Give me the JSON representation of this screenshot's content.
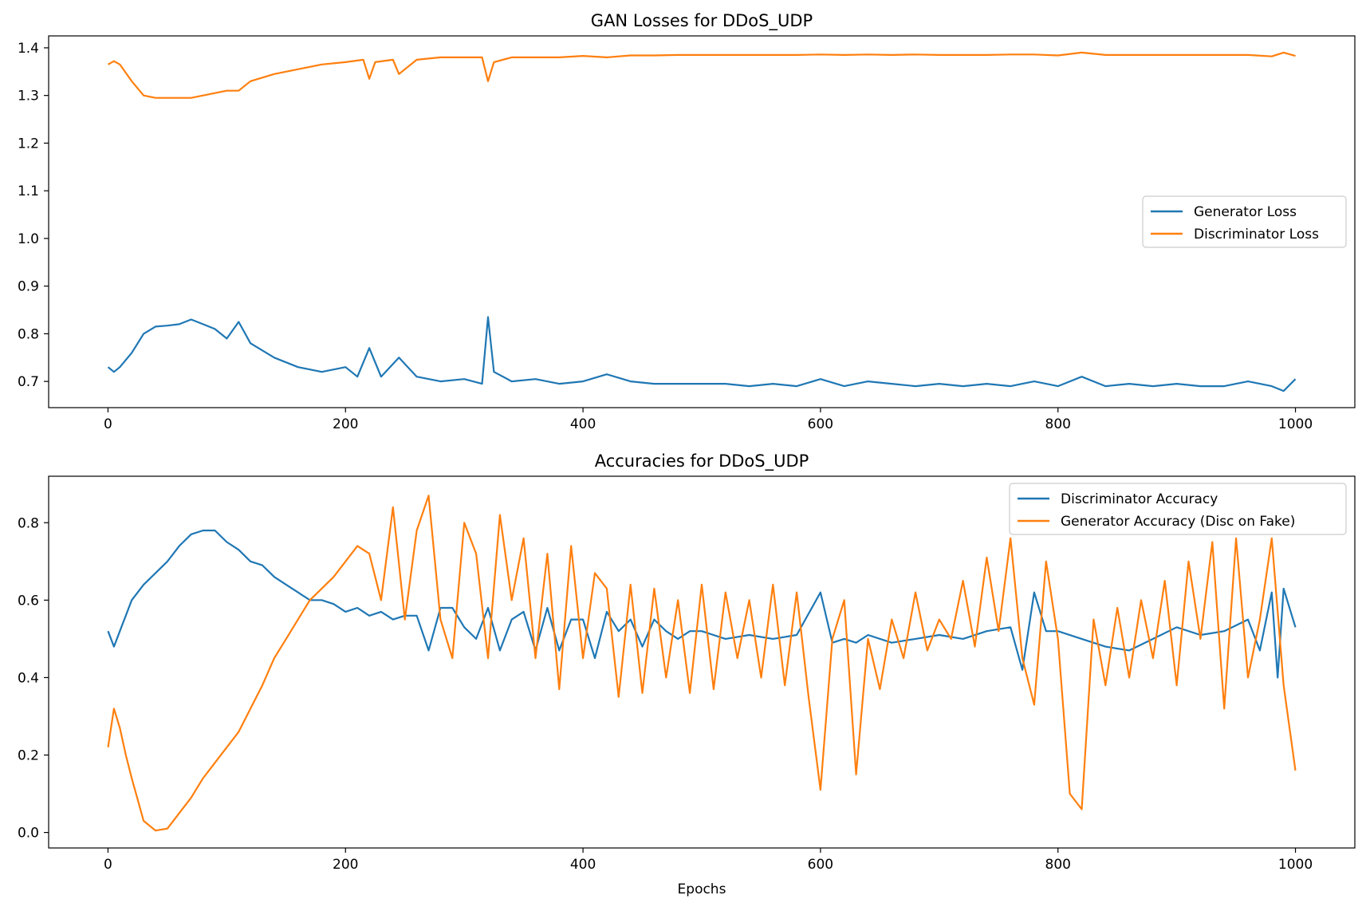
{
  "chart_data": [
    {
      "type": "line",
      "title": "GAN Losses for DDoS_UDP",
      "xlabel": "",
      "ylabel": "",
      "xlim": [
        -50,
        1050
      ],
      "ylim": [
        0.645,
        1.425
      ],
      "xticks": [
        0,
        200,
        400,
        600,
        800,
        1000
      ],
      "yticks": [
        0.7,
        0.8,
        0.9,
        1.0,
        1.1,
        1.2,
        1.3,
        1.4
      ],
      "ytick_labels": [
        "0.7",
        "0.8",
        "0.9",
        "1.0",
        "1.1",
        "1.2",
        "1.3",
        "1.4"
      ],
      "legend": "center-right",
      "grid": false,
      "series": [
        {
          "name": "Generator Loss",
          "color": "#1f77b4",
          "x": [
            0,
            5,
            10,
            20,
            30,
            40,
            50,
            60,
            70,
            80,
            90,
            100,
            110,
            120,
            140,
            160,
            180,
            200,
            210,
            220,
            230,
            245,
            260,
            280,
            300,
            315,
            320,
            325,
            340,
            360,
            380,
            400,
            420,
            440,
            460,
            480,
            500,
            520,
            540,
            560,
            580,
            600,
            620,
            640,
            660,
            680,
            700,
            720,
            740,
            760,
            780,
            800,
            820,
            840,
            860,
            880,
            900,
            920,
            940,
            960,
            980,
            990,
            1000
          ],
          "y": [
            0.73,
            0.72,
            0.73,
            0.76,
            0.8,
            0.815,
            0.817,
            0.82,
            0.83,
            0.82,
            0.81,
            0.79,
            0.825,
            0.78,
            0.75,
            0.73,
            0.72,
            0.73,
            0.71,
            0.77,
            0.71,
            0.75,
            0.71,
            0.7,
            0.705,
            0.695,
            0.835,
            0.72,
            0.7,
            0.705,
            0.695,
            0.7,
            0.715,
            0.7,
            0.695,
            0.695,
            0.695,
            0.695,
            0.69,
            0.695,
            0.69,
            0.705,
            0.69,
            0.7,
            0.695,
            0.69,
            0.695,
            0.69,
            0.695,
            0.69,
            0.7,
            0.69,
            0.71,
            0.69,
            0.695,
            0.69,
            0.695,
            0.69,
            0.69,
            0.7,
            0.69,
            0.68,
            0.705
          ]
        },
        {
          "name": "Discriminator Loss",
          "color": "#ff7f0e",
          "x": [
            0,
            5,
            10,
            20,
            30,
            40,
            50,
            60,
            70,
            80,
            90,
            100,
            110,
            120,
            140,
            160,
            180,
            200,
            215,
            220,
            225,
            240,
            245,
            260,
            280,
            300,
            315,
            320,
            325,
            340,
            360,
            380,
            400,
            420,
            440,
            460,
            480,
            500,
            520,
            540,
            560,
            580,
            600,
            620,
            640,
            660,
            680,
            700,
            720,
            740,
            760,
            780,
            800,
            820,
            840,
            860,
            880,
            900,
            920,
            940,
            960,
            980,
            990,
            1000
          ],
          "y": [
            1.365,
            1.372,
            1.365,
            1.33,
            1.3,
            1.295,
            1.295,
            1.295,
            1.295,
            1.3,
            1.305,
            1.31,
            1.31,
            1.33,
            1.345,
            1.355,
            1.365,
            1.37,
            1.375,
            1.335,
            1.37,
            1.375,
            1.345,
            1.375,
            1.38,
            1.38,
            1.38,
            1.33,
            1.37,
            1.38,
            1.38,
            1.38,
            1.383,
            1.38,
            1.384,
            1.384,
            1.385,
            1.385,
            1.385,
            1.385,
            1.385,
            1.385,
            1.386,
            1.385,
            1.386,
            1.385,
            1.386,
            1.385,
            1.385,
            1.385,
            1.386,
            1.386,
            1.384,
            1.39,
            1.385,
            1.385,
            1.385,
            1.385,
            1.385,
            1.385,
            1.385,
            1.382,
            1.39,
            1.383
          ]
        }
      ]
    },
    {
      "type": "line",
      "title": "Accuracies for DDoS_UDP",
      "xlabel": "Epochs",
      "ylabel": "",
      "xlim": [
        -50,
        1050
      ],
      "ylim": [
        -0.04,
        0.92
      ],
      "xticks": [
        0,
        200,
        400,
        600,
        800,
        1000
      ],
      "yticks": [
        0.0,
        0.2,
        0.4,
        0.6,
        0.8
      ],
      "ytick_labels": [
        "0.0",
        "0.2",
        "0.4",
        "0.6",
        "0.8"
      ],
      "legend": "top-right",
      "grid": false,
      "series": [
        {
          "name": "Discriminator Accuracy",
          "color": "#1f77b4",
          "x": [
            0,
            5,
            10,
            20,
            30,
            40,
            50,
            60,
            70,
            80,
            90,
            100,
            110,
            120,
            130,
            140,
            150,
            160,
            170,
            180,
            190,
            200,
            210,
            220,
            230,
            240,
            250,
            260,
            270,
            280,
            290,
            300,
            310,
            320,
            330,
            340,
            350,
            360,
            370,
            380,
            390,
            400,
            410,
            420,
            430,
            440,
            450,
            460,
            470,
            480,
            490,
            500,
            520,
            540,
            560,
            580,
            600,
            610,
            620,
            630,
            640,
            660,
            680,
            700,
            720,
            740,
            760,
            770,
            780,
            790,
            800,
            820,
            840,
            860,
            880,
            900,
            920,
            940,
            960,
            970,
            980,
            985,
            990,
            1000
          ],
          "y": [
            0.52,
            0.48,
            0.52,
            0.6,
            0.64,
            0.67,
            0.7,
            0.74,
            0.77,
            0.78,
            0.78,
            0.75,
            0.73,
            0.7,
            0.69,
            0.66,
            0.64,
            0.62,
            0.6,
            0.6,
            0.59,
            0.57,
            0.58,
            0.56,
            0.57,
            0.55,
            0.56,
            0.56,
            0.47,
            0.58,
            0.58,
            0.53,
            0.5,
            0.58,
            0.47,
            0.55,
            0.57,
            0.47,
            0.58,
            0.47,
            0.55,
            0.55,
            0.45,
            0.57,
            0.52,
            0.55,
            0.48,
            0.55,
            0.52,
            0.5,
            0.52,
            0.52,
            0.5,
            0.51,
            0.5,
            0.51,
            0.62,
            0.49,
            0.5,
            0.49,
            0.51,
            0.49,
            0.5,
            0.51,
            0.5,
            0.52,
            0.53,
            0.42,
            0.62,
            0.52,
            0.52,
            0.5,
            0.48,
            0.47,
            0.5,
            0.53,
            0.51,
            0.52,
            0.55,
            0.47,
            0.62,
            0.4,
            0.63,
            0.53
          ]
        },
        {
          "name": "Generator Accuracy (Disc on Fake)",
          "color": "#ff7f0e",
          "x": [
            0,
            5,
            10,
            15,
            20,
            30,
            40,
            50,
            60,
            70,
            80,
            90,
            100,
            110,
            120,
            130,
            140,
            150,
            160,
            170,
            180,
            190,
            200,
            210,
            220,
            230,
            240,
            250,
            260,
            270,
            280,
            290,
            300,
            310,
            320,
            330,
            340,
            350,
            360,
            370,
            380,
            390,
            400,
            410,
            420,
            430,
            440,
            450,
            460,
            470,
            480,
            490,
            500,
            510,
            520,
            530,
            540,
            550,
            560,
            570,
            580,
            590,
            600,
            610,
            620,
            630,
            640,
            650,
            660,
            670,
            680,
            690,
            700,
            710,
            720,
            730,
            740,
            750,
            760,
            770,
            780,
            790,
            800,
            810,
            820,
            830,
            840,
            850,
            860,
            870,
            880,
            890,
            900,
            910,
            920,
            930,
            940,
            950,
            960,
            970,
            980,
            990,
            1000
          ],
          "y": [
            0.22,
            0.32,
            0.27,
            0.2,
            0.14,
            0.03,
            0.005,
            0.01,
            0.05,
            0.09,
            0.14,
            0.18,
            0.22,
            0.26,
            0.32,
            0.38,
            0.45,
            0.5,
            0.55,
            0.6,
            0.63,
            0.66,
            0.7,
            0.74,
            0.72,
            0.6,
            0.84,
            0.55,
            0.78,
            0.87,
            0.55,
            0.45,
            0.8,
            0.72,
            0.45,
            0.82,
            0.6,
            0.76,
            0.45,
            0.72,
            0.37,
            0.74,
            0.45,
            0.67,
            0.63,
            0.35,
            0.64,
            0.36,
            0.63,
            0.4,
            0.6,
            0.36,
            0.64,
            0.37,
            0.62,
            0.45,
            0.6,
            0.4,
            0.64,
            0.38,
            0.62,
            0.35,
            0.11,
            0.5,
            0.6,
            0.15,
            0.5,
            0.37,
            0.55,
            0.45,
            0.62,
            0.47,
            0.55,
            0.5,
            0.65,
            0.48,
            0.71,
            0.52,
            0.76,
            0.45,
            0.33,
            0.7,
            0.5,
            0.1,
            0.06,
            0.55,
            0.38,
            0.58,
            0.4,
            0.6,
            0.45,
            0.65,
            0.38,
            0.7,
            0.5,
            0.75,
            0.32,
            0.76,
            0.4,
            0.55,
            0.76,
            0.38,
            0.16
          ]
        }
      ]
    }
  ]
}
